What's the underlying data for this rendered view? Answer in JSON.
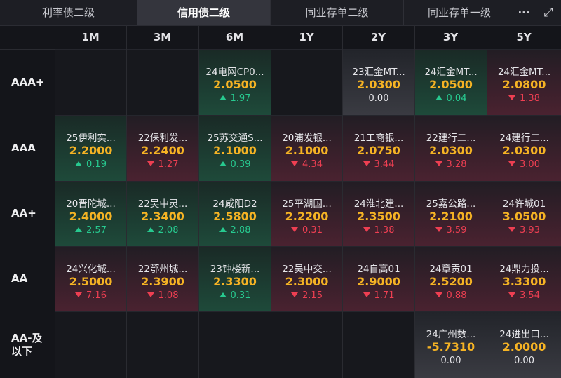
{
  "tabs": [
    {
      "label": "利率债二级"
    },
    {
      "label": "信用债二级"
    },
    {
      "label": "同业存单二级"
    },
    {
      "label": "同业存单一级"
    }
  ],
  "toolbar": {
    "more_label": "···",
    "expand_label": "⤢"
  },
  "columns": [
    "1M",
    "3M",
    "6M",
    "1Y",
    "2Y",
    "3Y",
    "5Y"
  ],
  "rows": [
    {
      "label": "AAA+",
      "cells": [
        null,
        null,
        {
          "name": "24电网CP0...",
          "yield": "2.0500",
          "change": "1.97",
          "dir": "up"
        },
        null,
        {
          "name": "23汇金MT...",
          "yield": "2.0300",
          "change": "0.00",
          "dir": "flat"
        },
        {
          "name": "24汇金MT...",
          "yield": "2.0500",
          "change": "0.04",
          "dir": "up"
        },
        {
          "name": "24汇金MT...",
          "yield": "2.0800",
          "change": "1.38",
          "dir": "down"
        }
      ]
    },
    {
      "label": "AAA",
      "cells": [
        {
          "name": "25伊利实...",
          "yield": "2.2000",
          "change": "0.19",
          "dir": "up"
        },
        {
          "name": "22保利发...",
          "yield": "2.2400",
          "change": "1.27",
          "dir": "down"
        },
        {
          "name": "25苏交通S...",
          "yield": "2.1000",
          "change": "0.39",
          "dir": "up"
        },
        {
          "name": "20浦发银...",
          "yield": "2.1000",
          "change": "4.34",
          "dir": "down"
        },
        {
          "name": "21工商银...",
          "yield": "2.0750",
          "change": "3.44",
          "dir": "down"
        },
        {
          "name": "22建行二...",
          "yield": "2.0300",
          "change": "3.28",
          "dir": "down"
        },
        {
          "name": "24建行二...",
          "yield": "2.0300",
          "change": "3.00",
          "dir": "down"
        }
      ]
    },
    {
      "label": "AA+",
      "cells": [
        {
          "name": "20晋陀城...",
          "yield": "2.4000",
          "change": "2.57",
          "dir": "up"
        },
        {
          "name": "22吴中灵...",
          "yield": "2.3400",
          "change": "2.08",
          "dir": "up"
        },
        {
          "name": "24咸阳D2",
          "yield": "2.5800",
          "change": "2.88",
          "dir": "up"
        },
        {
          "name": "25平湖国...",
          "yield": "2.2200",
          "change": "0.31",
          "dir": "down"
        },
        {
          "name": "24淮北建...",
          "yield": "2.3500",
          "change": "1.38",
          "dir": "down"
        },
        {
          "name": "25嘉公路...",
          "yield": "2.2100",
          "change": "3.59",
          "dir": "down"
        },
        {
          "name": "24许城01",
          "yield": "3.0500",
          "change": "3.93",
          "dir": "down"
        }
      ]
    },
    {
      "label": "AA",
      "cells": [
        {
          "name": "24兴化城...",
          "yield": "2.5000",
          "change": "7.16",
          "dir": "down"
        },
        {
          "name": "22鄂州城...",
          "yield": "2.3900",
          "change": "1.08",
          "dir": "down"
        },
        {
          "name": "23钟楼新...",
          "yield": "2.3300",
          "change": "0.31",
          "dir": "up"
        },
        {
          "name": "22吴中交...",
          "yield": "2.3000",
          "change": "2.15",
          "dir": "down"
        },
        {
          "name": "24自高01",
          "yield": "2.9000",
          "change": "1.71",
          "dir": "down"
        },
        {
          "name": "24章贡01",
          "yield": "2.5200",
          "change": "0.88",
          "dir": "down"
        },
        {
          "name": "24鼎力投...",
          "yield": "3.3300",
          "change": "3.54",
          "dir": "down"
        }
      ]
    },
    {
      "label": "AA-及\n以下",
      "cells": [
        null,
        null,
        null,
        null,
        null,
        {
          "name": "24广州数...",
          "yield": "-5.7310",
          "change": "0.00",
          "dir": "flat"
        },
        {
          "name": "24进出口...",
          "yield": "2.0000",
          "change": "0.00",
          "dir": "flat"
        }
      ]
    }
  ],
  "colors": {
    "up": "#27c98f",
    "down": "#ee3f52",
    "yield": "#f5b324"
  }
}
